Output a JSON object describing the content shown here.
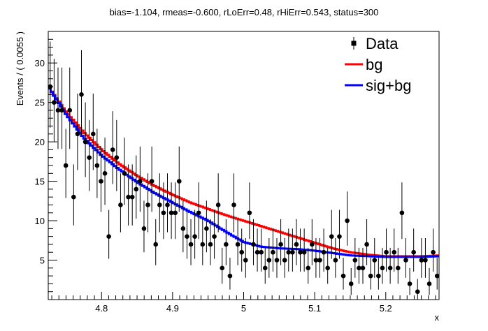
{
  "chart_data": {
    "type": "scatter",
    "title": "bias=-1.104, rmeas=-0.600, rLoErr=0.48, rHiErr=0.543, status=300",
    "xlabel": "x",
    "ylabel": "Events / ( 0.0055 )",
    "xlim": [
      4.725,
      5.275
    ],
    "ylim": [
      0,
      34
    ],
    "x_ticks": [
      4.8,
      4.9,
      5.0,
      5.1,
      5.2
    ],
    "x_tick_labels": [
      "4.8",
      "4.9",
      "5",
      "5.1",
      "5.2"
    ],
    "y_ticks": [
      5,
      10,
      15,
      20,
      25,
      30
    ],
    "y_tick_labels": [
      "5",
      "10",
      "15",
      "20",
      "25",
      "30"
    ],
    "legend": {
      "position": "top-right",
      "entries": [
        {
          "label": "Data",
          "color": "#000000",
          "marker": "point"
        },
        {
          "label": "bg",
          "color": "#ff0000",
          "marker": "line"
        },
        {
          "label": "sig+bg",
          "color": "#0000ff",
          "marker": "line"
        }
      ]
    },
    "data": {
      "name": "Data",
      "color": "#000000",
      "x_start": 4.72775,
      "bin_width": 0.0055,
      "y": [
        27,
        25,
        24,
        24,
        17,
        24,
        13,
        21,
        26,
        20,
        18,
        21,
        17,
        15,
        16,
        8,
        19,
        18,
        12,
        16,
        13,
        13,
        14,
        15,
        9,
        12,
        15,
        7,
        12,
        11,
        12,
        11,
        11,
        15,
        9,
        8,
        7,
        8,
        11,
        7,
        9,
        7,
        8,
        12,
        4,
        7,
        3,
        12,
        7,
        6,
        5,
        11,
        7,
        6,
        6,
        4,
        5,
        6,
        5,
        7,
        5,
        6,
        6,
        7,
        6,
        6,
        4,
        7,
        5,
        5,
        6,
        4,
        8,
        5,
        8,
        3,
        10,
        2,
        5,
        4,
        4,
        7,
        3,
        5,
        3,
        4,
        6,
        4,
        6,
        4,
        11,
        5,
        2,
        6,
        1,
        5,
        5,
        2,
        6,
        3,
        6,
        4,
        2,
        6,
        3,
        6,
        5,
        7,
        4,
        3,
        6,
        2,
        2,
        3,
        2,
        2,
        6,
        5,
        2,
        3,
        2,
        10,
        6,
        4,
        2,
        8,
        1,
        5,
        3,
        4,
        6,
        2,
        5,
        3,
        6,
        2,
        6,
        2,
        9,
        6,
        2,
        5
      ]
    },
    "curves": [
      {
        "name": "bg",
        "color": "#ff0000",
        "x": [
          4.725,
          4.75,
          4.775,
          4.8,
          4.825,
          4.85,
          4.875,
          4.9,
          4.925,
          4.95,
          4.975,
          5.0,
          5.025,
          5.05,
          5.075,
          5.1,
          5.125,
          5.15,
          5.175,
          5.2,
          5.225,
          5.25,
          5.275
        ],
        "y": [
          27.0,
          23.8,
          21.2,
          19.0,
          17.2,
          15.7,
          14.4,
          13.3,
          12.3,
          11.5,
          10.7,
          10.0,
          9.3,
          8.6,
          7.9,
          7.2,
          6.5,
          6.0,
          5.7,
          5.5,
          5.5,
          5.5,
          5.6
        ]
      },
      {
        "name": "sig+bg",
        "color": "#0000ff",
        "x": [
          4.725,
          4.75,
          4.775,
          4.8,
          4.825,
          4.85,
          4.875,
          4.9,
          4.925,
          4.95,
          4.975,
          5.0,
          5.025,
          5.05,
          5.075,
          5.1,
          5.125,
          5.15,
          5.175,
          5.2,
          5.225,
          5.25,
          5.275
        ],
        "y": [
          27.0,
          23.5,
          20.5,
          18.3,
          16.5,
          14.9,
          13.5,
          12.3,
          11.1,
          10.0,
          8.6,
          7.3,
          6.7,
          6.5,
          6.4,
          6.2,
          5.9,
          5.6,
          5.5,
          5.4,
          5.4,
          5.4,
          5.5
        ]
      }
    ]
  }
}
